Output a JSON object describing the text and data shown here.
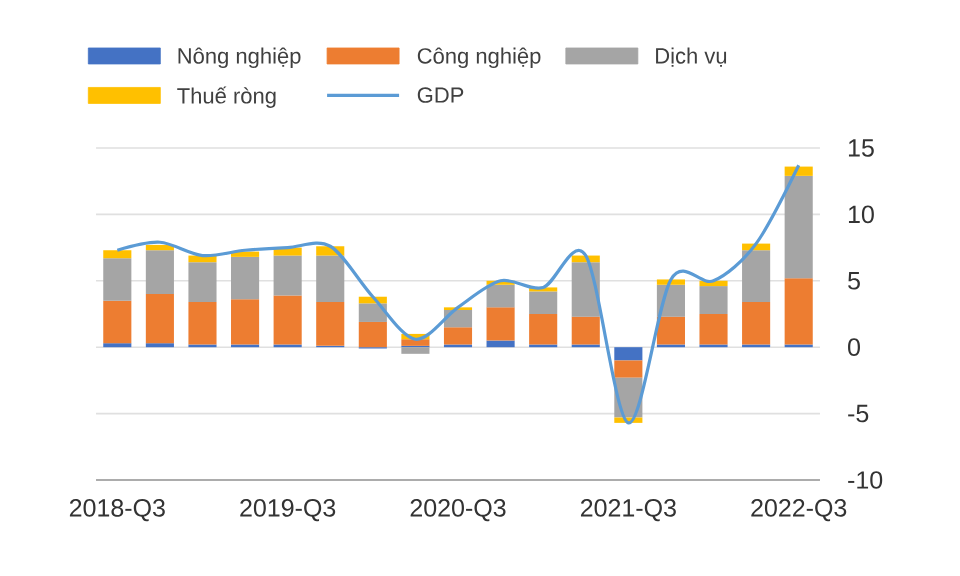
{
  "chart_data": {
    "type": "bar",
    "stacked": true,
    "categories": [
      "2018-Q3",
      null,
      null,
      null,
      "2019-Q3",
      null,
      null,
      null,
      "2020-Q3",
      null,
      null,
      null,
      "2021-Q3",
      null,
      null,
      null,
      "2022-Q3"
    ],
    "series": [
      {
        "name": "Nông nghiệp",
        "color": "#4472c4",
        "values": [
          0.3,
          0.3,
          0.2,
          0.2,
          0.2,
          0.1,
          -0.1,
          0.1,
          0.2,
          0.5,
          0.2,
          0.2,
          -1.0,
          0.2,
          0.2,
          0.2,
          0.2
        ]
      },
      {
        "name": "Công nghiệp",
        "color": "#ed7d31",
        "values": [
          3.2,
          3.7,
          3.2,
          3.4,
          3.7,
          3.3,
          1.9,
          0.5,
          1.3,
          2.5,
          2.3,
          2.1,
          -1.3,
          2.1,
          2.3,
          3.2,
          5.0
        ]
      },
      {
        "name": "Dịch vụ",
        "color": "#a5a5a5",
        "values": [
          3.2,
          3.3,
          3.0,
          3.2,
          3.0,
          3.5,
          1.4,
          -0.5,
          1.3,
          1.7,
          1.7,
          4.1,
          -3.0,
          2.4,
          2.1,
          3.9,
          7.7
        ]
      },
      {
        "name": "Thuế ròng",
        "color": "#ffc000",
        "values": [
          0.6,
          0.4,
          0.5,
          0.4,
          0.6,
          0.7,
          0.5,
          0.4,
          0.2,
          0.3,
          0.3,
          0.5,
          -0.4,
          0.4,
          0.4,
          0.5,
          0.7
        ]
      },
      {
        "name": "GDP",
        "type": "line",
        "color": "#5b9bd5",
        "values": [
          7.3,
          7.9,
          6.9,
          7.3,
          7.5,
          7.6,
          3.8,
          0.6,
          3.0,
          5.0,
          4.5,
          6.9,
          -5.7,
          5.1,
          5.0,
          7.8,
          13.7
        ]
      }
    ],
    "ylim": [
      -10,
      15
    ],
    "yticks": [
      -10,
      -5,
      0,
      5,
      10,
      15
    ],
    "grid": "y",
    "legend": "top"
  }
}
